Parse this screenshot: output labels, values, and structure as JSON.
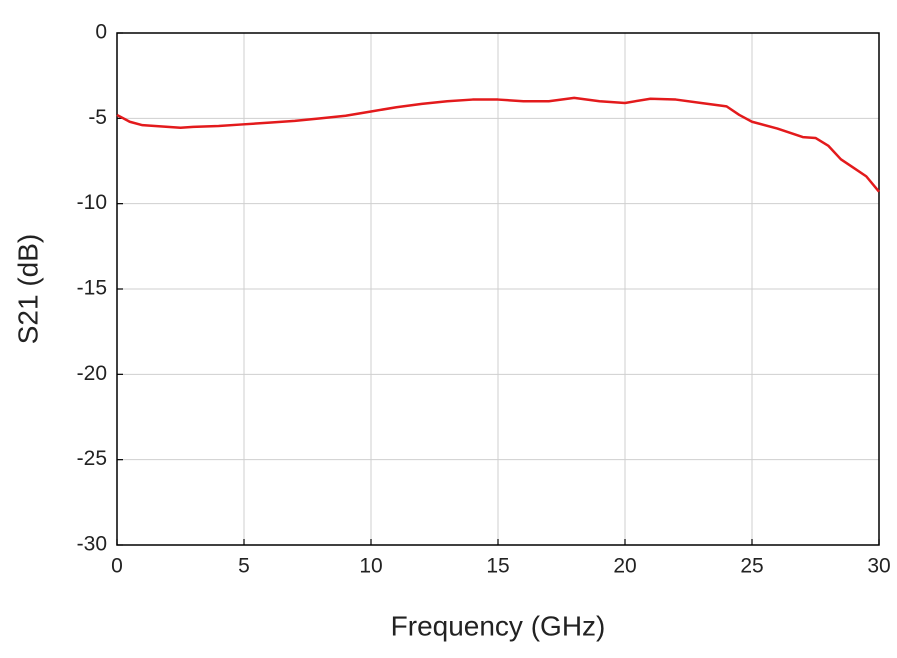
{
  "chart_data": {
    "type": "line",
    "xlabel": "Frequency (GHz)",
    "ylabel": "S21 (dB)",
    "x": [
      0,
      0.5,
      1,
      1.5,
      2,
      2.5,
      3,
      4,
      5,
      6,
      7,
      8,
      9,
      10,
      11,
      12,
      13,
      14,
      15,
      16,
      17,
      18,
      19,
      20,
      21,
      22,
      23,
      24,
      24.5,
      25,
      26,
      27,
      27.5,
      28,
      28.5,
      29,
      29.5,
      30
    ],
    "values": [
      -4.8,
      -5.2,
      -5.4,
      -5.45,
      -5.5,
      -5.55,
      -5.5,
      -5.45,
      -5.35,
      -5.25,
      -5.15,
      -5.0,
      -4.85,
      -4.6,
      -4.35,
      -4.15,
      -4.0,
      -3.9,
      -3.9,
      -4.0,
      -4.0,
      -3.8,
      -4.0,
      -4.1,
      -3.85,
      -3.9,
      -4.1,
      -4.3,
      -4.8,
      -5.2,
      -5.6,
      -6.1,
      -6.15,
      -6.6,
      -7.4,
      -7.9,
      -8.4,
      -9.3
    ],
    "color": "#e31a1c",
    "xlim": [
      0,
      30
    ],
    "xticks": [
      0,
      5,
      10,
      15,
      20,
      25,
      30
    ],
    "ylim": [
      -30,
      0
    ],
    "yticks": [
      0,
      -5,
      -10,
      -15,
      -20,
      -25,
      -30
    ],
    "grid": true
  }
}
